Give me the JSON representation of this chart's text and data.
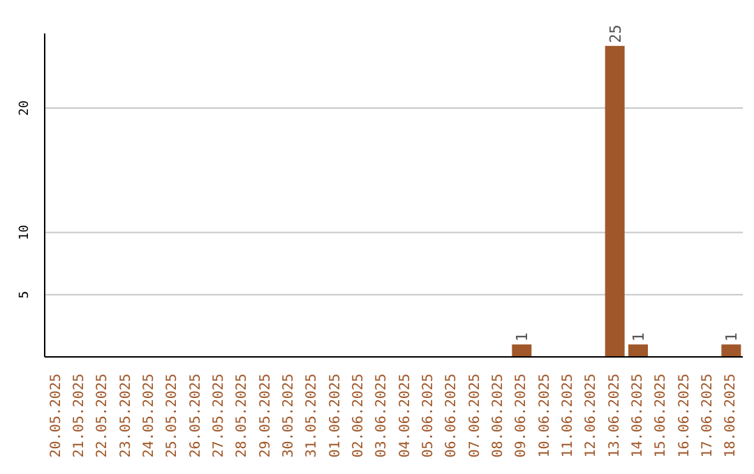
{
  "chart_data": {
    "type": "bar",
    "categories": [
      "20.05.2025",
      "21.05.2025",
      "22.05.2025",
      "23.05.2025",
      "24.05.2025",
      "25.05.2025",
      "26.05.2025",
      "27.05.2025",
      "28.05.2025",
      "29.05.2025",
      "30.05.2025",
      "31.05.2025",
      "01.06.2025",
      "02.06.2025",
      "03.06.2025",
      "04.06.2025",
      "05.06.2025",
      "06.06.2025",
      "07.06.2025",
      "08.06.2025",
      "09.06.2025",
      "10.06.2025",
      "11.06.2025",
      "12.06.2025",
      "13.06.2025",
      "14.06.2025",
      "15.06.2025",
      "16.06.2025",
      "17.06.2025",
      "18.06.2025"
    ],
    "values": [
      0,
      0,
      0,
      0,
      0,
      0,
      0,
      0,
      0,
      0,
      0,
      0,
      0,
      0,
      0,
      0,
      0,
      0,
      0,
      0,
      1,
      0,
      0,
      0,
      25,
      1,
      0,
      0,
      0,
      1
    ],
    "value_labels": [
      null,
      null,
      null,
      null,
      null,
      null,
      null,
      null,
      null,
      null,
      null,
      null,
      null,
      null,
      null,
      null,
      null,
      null,
      null,
      null,
      "1",
      null,
      null,
      null,
      "25",
      "1",
      null,
      null,
      null,
      "1"
    ],
    "color": "#a0582a",
    "ylim": [
      0,
      26
    ],
    "yticks": [
      5,
      10,
      20
    ],
    "grid": "y"
  }
}
